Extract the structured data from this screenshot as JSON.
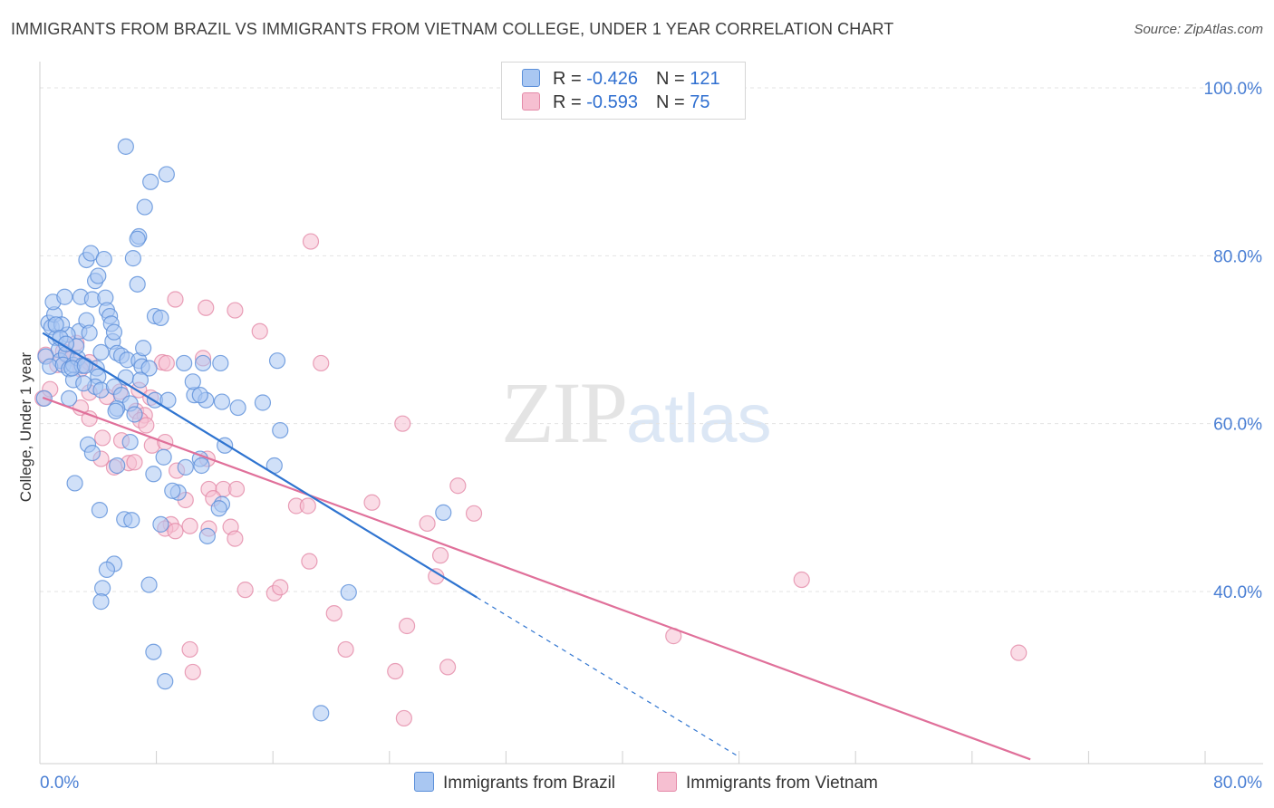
{
  "title": "IMMIGRANTS FROM BRAZIL VS IMMIGRANTS FROM VIETNAM COLLEGE, UNDER 1 YEAR CORRELATION CHART",
  "source": "Source: ZipAtlas.com",
  "watermark": {
    "zip": "ZIP",
    "atlas": "atlas"
  },
  "legend": {
    "brazil": {
      "r_label": "R =",
      "r_value": "-0.426",
      "n_label": "N =",
      "n_value": "121"
    },
    "vietnam": {
      "r_label": "R =",
      "r_value": "-0.593",
      "n_label": "N =",
      "n_value": "75"
    }
  },
  "colors": {
    "brazil_fill": "#a9c7f2",
    "brazil_stroke": "#5b8fd9",
    "brazil_line": "#2f74d0",
    "vietnam_fill": "#f6bfd1",
    "vietnam_stroke": "#e48aa8",
    "vietnam_line": "#e0709a",
    "grid": "#e3e3e3",
    "tick_text": "#4a7fd4"
  },
  "chart_data": {
    "type": "scatter",
    "title": "IMMIGRANTS FROM BRAZIL VS IMMIGRANTS FROM VIETNAM COLLEGE, UNDER 1 YEAR CORRELATION CHART",
    "xlabel": "",
    "ylabel": "College, Under 1 year",
    "xlim": [
      0,
      80
    ],
    "ylim": [
      20,
      100
    ],
    "x_tick_labels": [
      "0.0%",
      "80.0%"
    ],
    "y_ticks": [
      40,
      60,
      80,
      100
    ],
    "y_tick_labels": [
      "40.0%",
      "60.0%",
      "80.0%",
      "100.0%"
    ],
    "series": [
      {
        "name": "Immigrants from Brazil",
        "r": -0.426,
        "n": 121,
        "trend": {
          "x0": 0.2,
          "y0": 70.8,
          "x1": 30.0,
          "y1": 39.3,
          "dash_x1": 48.0,
          "dash_y1": 20.3
        },
        "points": [
          [
            0.6,
            72.0
          ],
          [
            0.8,
            71.5
          ],
          [
            1.0,
            73.0
          ],
          [
            1.1,
            70.2
          ],
          [
            1.3,
            68.8
          ],
          [
            1.4,
            67.5
          ],
          [
            0.4,
            68.0
          ],
          [
            0.7,
            66.8
          ],
          [
            1.8,
            68.3
          ],
          [
            1.6,
            67.0
          ],
          [
            2.0,
            66.5
          ],
          [
            2.3,
            67.0
          ],
          [
            2.6,
            67.8
          ],
          [
            2.9,
            66.9
          ],
          [
            2.5,
            69.2
          ],
          [
            2.7,
            71.0
          ],
          [
            1.9,
            70.6
          ],
          [
            1.5,
            71.8
          ],
          [
            0.9,
            74.5
          ],
          [
            1.7,
            75.1
          ],
          [
            2.8,
            75.1
          ],
          [
            3.6,
            74.8
          ],
          [
            4.5,
            75.0
          ],
          [
            4.6,
            73.5
          ],
          [
            4.8,
            72.8
          ],
          [
            4.9,
            71.9
          ],
          [
            3.2,
            72.3
          ],
          [
            3.4,
            70.8
          ],
          [
            5.0,
            69.8
          ],
          [
            5.3,
            68.4
          ],
          [
            5.6,
            68.1
          ],
          [
            6.0,
            67.6
          ],
          [
            6.8,
            67.5
          ],
          [
            7.0,
            66.8
          ],
          [
            7.1,
            69.0
          ],
          [
            7.5,
            66.6
          ],
          [
            7.9,
            72.8
          ],
          [
            8.3,
            72.6
          ],
          [
            5.1,
            70.9
          ],
          [
            4.2,
            68.5
          ],
          [
            3.9,
            66.6
          ],
          [
            4.0,
            65.6
          ],
          [
            3.8,
            64.4
          ],
          [
            4.2,
            64.0
          ],
          [
            2.3,
            65.2
          ],
          [
            2.0,
            63.0
          ],
          [
            3.0,
            64.8
          ],
          [
            5.1,
            64.4
          ],
          [
            5.6,
            63.4
          ],
          [
            6.2,
            62.4
          ],
          [
            5.3,
            61.8
          ],
          [
            5.2,
            61.5
          ],
          [
            6.5,
            61.1
          ],
          [
            7.9,
            62.8
          ],
          [
            8.8,
            62.8
          ],
          [
            10.6,
            63.4
          ],
          [
            11.4,
            62.8
          ],
          [
            11.0,
            63.4
          ],
          [
            12.5,
            62.6
          ],
          [
            13.6,
            61.9
          ],
          [
            11.2,
            67.2
          ],
          [
            12.4,
            67.2
          ],
          [
            16.3,
            67.5
          ],
          [
            6.2,
            57.8
          ],
          [
            3.3,
            57.5
          ],
          [
            3.6,
            56.5
          ],
          [
            8.5,
            56.0
          ],
          [
            10.0,
            54.8
          ],
          [
            11.0,
            55.8
          ],
          [
            11.1,
            55.0
          ],
          [
            7.8,
            54.0
          ],
          [
            5.3,
            55.0
          ],
          [
            12.7,
            57.4
          ],
          [
            16.1,
            55.0
          ],
          [
            16.5,
            59.2
          ],
          [
            2.4,
            52.9
          ],
          [
            9.5,
            51.8
          ],
          [
            4.1,
            49.7
          ],
          [
            5.8,
            48.6
          ],
          [
            6.3,
            48.5
          ],
          [
            8.3,
            48.0
          ],
          [
            12.5,
            50.4
          ],
          [
            12.3,
            49.9
          ],
          [
            11.5,
            46.6
          ],
          [
            27.7,
            49.4
          ],
          [
            5.1,
            43.3
          ],
          [
            4.6,
            42.6
          ],
          [
            4.3,
            40.4
          ],
          [
            7.5,
            40.8
          ],
          [
            4.2,
            38.8
          ],
          [
            21.2,
            39.9
          ],
          [
            7.8,
            32.8
          ],
          [
            8.6,
            29.3
          ],
          [
            19.3,
            25.5
          ],
          [
            5.9,
            93.0
          ],
          [
            7.6,
            88.8
          ],
          [
            8.7,
            89.7
          ],
          [
            7.2,
            85.8
          ],
          [
            6.8,
            82.3
          ],
          [
            6.7,
            82.0
          ],
          [
            3.2,
            79.5
          ],
          [
            3.5,
            80.3
          ],
          [
            4.4,
            79.6
          ],
          [
            6.4,
            79.7
          ],
          [
            3.8,
            77.0
          ],
          [
            4.0,
            77.6
          ],
          [
            6.7,
            76.6
          ],
          [
            1.1,
            71.8
          ],
          [
            1.4,
            70.2
          ],
          [
            1.8,
            69.5
          ],
          [
            2.2,
            66.6
          ],
          [
            3.1,
            66.9
          ],
          [
            0.3,
            63.0
          ],
          [
            5.9,
            65.5
          ],
          [
            6.9,
            65.2
          ],
          [
            9.9,
            67.2
          ],
          [
            10.5,
            65.0
          ],
          [
            15.3,
            62.5
          ],
          [
            9.1,
            52.0
          ]
        ]
      },
      {
        "name": "Immigrants from Vietnam",
        "r": -0.593,
        "n": 75,
        "trend": {
          "x0": 0.2,
          "y0": 63.1,
          "x1": 68.0,
          "y1": 20.0
        },
        "points": [
          [
            0.4,
            68.2
          ],
          [
            1.2,
            67.0
          ],
          [
            1.6,
            68.6
          ],
          [
            1.9,
            68.1
          ],
          [
            2.5,
            69.6
          ],
          [
            2.2,
            67.8
          ],
          [
            3.4,
            67.3
          ],
          [
            2.8,
            66.5
          ],
          [
            0.2,
            63.0
          ],
          [
            0.7,
            64.1
          ],
          [
            3.4,
            63.7
          ],
          [
            4.6,
            63.2
          ],
          [
            5.5,
            63.8
          ],
          [
            6.8,
            64.0
          ],
          [
            7.6,
            63.1
          ],
          [
            8.4,
            67.3
          ],
          [
            8.7,
            67.2
          ],
          [
            11.2,
            67.8
          ],
          [
            19.3,
            67.2
          ],
          [
            2.8,
            61.9
          ],
          [
            3.4,
            60.6
          ],
          [
            6.6,
            61.5
          ],
          [
            7.2,
            61.0
          ],
          [
            6.9,
            60.4
          ],
          [
            7.3,
            59.8
          ],
          [
            4.3,
            58.3
          ],
          [
            5.6,
            58.0
          ],
          [
            7.7,
            57.4
          ],
          [
            8.6,
            57.8
          ],
          [
            4.2,
            55.8
          ],
          [
            5.1,
            54.8
          ],
          [
            6.1,
            55.3
          ],
          [
            6.5,
            55.4
          ],
          [
            9.4,
            54.4
          ],
          [
            11.5,
            55.8
          ],
          [
            11.6,
            52.2
          ],
          [
            12.6,
            52.2
          ],
          [
            13.5,
            52.2
          ],
          [
            10.0,
            50.9
          ],
          [
            11.9,
            51.1
          ],
          [
            17.6,
            50.2
          ],
          [
            18.4,
            50.2
          ],
          [
            22.8,
            50.6
          ],
          [
            24.9,
            60.0
          ],
          [
            28.7,
            52.6
          ],
          [
            29.8,
            49.3
          ],
          [
            26.6,
            48.1
          ],
          [
            9.0,
            48.0
          ],
          [
            8.6,
            47.5
          ],
          [
            9.3,
            47.2
          ],
          [
            10.3,
            47.8
          ],
          [
            11.6,
            47.5
          ],
          [
            13.1,
            47.7
          ],
          [
            13.4,
            46.3
          ],
          [
            18.5,
            43.6
          ],
          [
            27.5,
            44.3
          ],
          [
            27.2,
            41.8
          ],
          [
            14.1,
            40.2
          ],
          [
            16.1,
            39.8
          ],
          [
            16.5,
            40.5
          ],
          [
            20.2,
            37.4
          ],
          [
            25.2,
            35.9
          ],
          [
            21.0,
            33.1
          ],
          [
            10.3,
            33.1
          ],
          [
            10.5,
            30.4
          ],
          [
            24.4,
            30.5
          ],
          [
            28.0,
            31.0
          ],
          [
            25.0,
            24.9
          ],
          [
            52.3,
            41.4
          ],
          [
            43.5,
            34.7
          ],
          [
            67.2,
            32.7
          ],
          [
            18.6,
            81.7
          ],
          [
            9.3,
            74.8
          ],
          [
            11.4,
            73.8
          ],
          [
            13.4,
            73.5
          ],
          [
            15.1,
            71.0
          ]
        ]
      }
    ]
  },
  "bottom_legend": {
    "brazil": "Immigrants from Brazil",
    "vietnam": "Immigrants from Vietnam"
  }
}
